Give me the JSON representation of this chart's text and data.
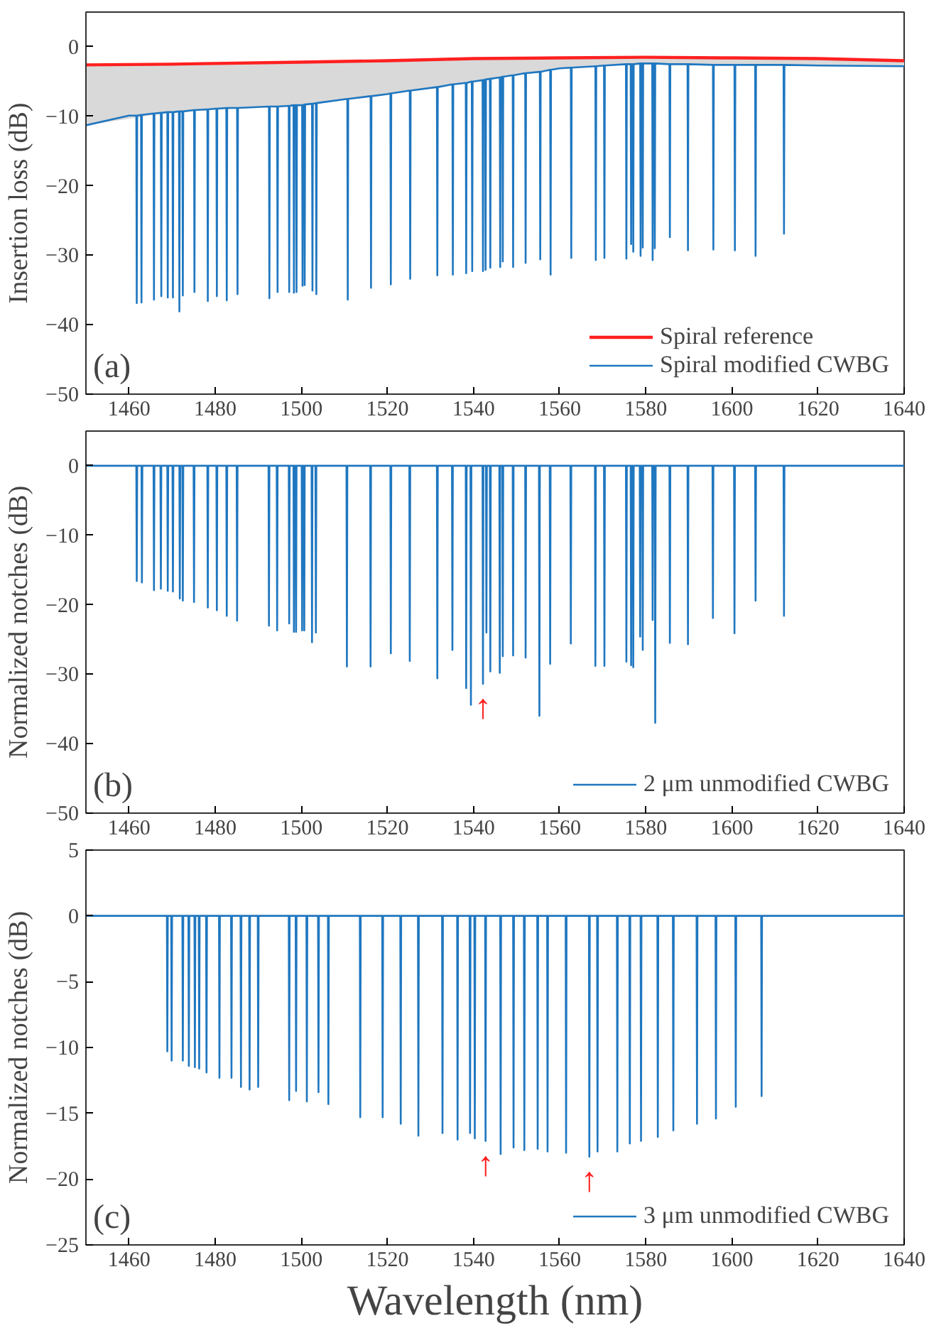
{
  "chart_data": [
    {
      "type": "line",
      "ylabel": "Insertion loss (dB)",
      "xlim": [
        1450,
        1640
      ],
      "ylim": [
        -50,
        5
      ],
      "xticks": [
        1460,
        1480,
        1500,
        1520,
        1540,
        1560,
        1580,
        1600,
        1620,
        1640
      ],
      "yticks": [
        -50,
        -40,
        -30,
        -20,
        -10,
        0
      ],
      "legend": "bottom right",
      "annotations": [
        "(a)"
      ],
      "series": [
        {
          "name": "Spiral reference",
          "color": "#ff2020",
          "x": [
            1450,
            1470,
            1500,
            1520,
            1540,
            1560,
            1580,
            1600,
            1620,
            1640
          ],
          "values": [
            -2.6,
            -2.5,
            -2.2,
            -2.0,
            -1.7,
            -1.6,
            -1.5,
            -1.6,
            -1.7,
            -2.0
          ],
          "upper": [
            -2.6,
            -2.5,
            -2.2,
            -2.0,
            -1.7,
            -1.6,
            -1.5,
            -1.6,
            -1.7,
            -2.0
          ],
          "lower": [
            -11.3,
            -9.4,
            -8.4,
            -6.8,
            -5.0,
            -3.1,
            -2.4,
            -2.6,
            -2.7,
            -2.8
          ]
        },
        {
          "name": "Spiral modified CWBG",
          "color": "#1f77c0",
          "x": [
            1450,
            1460,
            1461.7,
            1461.8,
            1461.9,
            1462.8,
            1462.9,
            1463.0,
            1465.7,
            1465.8,
            1465.9,
            1467.4,
            1467.5,
            1467.6,
            1468.9,
            1469.0,
            1469.1,
            1470.1,
            1470.2,
            1470.3,
            1471.6,
            1471.7,
            1471.8,
            1472.4,
            1472.5,
            1472.6,
            1475.1,
            1475.2,
            1475.3,
            1478.2,
            1478.3,
            1478.4,
            1480,
            1480.3,
            1480.4,
            1480.5,
            1482.6,
            1482.7,
            1482.8,
            1485.1,
            1485.2,
            1485.3,
            1492.5,
            1492.6,
            1492.7,
            1494.4,
            1494.5,
            1494.6,
            1497.1,
            1497.2,
            1497.3,
            1498.2,
            1498.3,
            1498.4,
            1498.8,
            1498.9,
            1499.0,
            1500,
            1500.2,
            1500.3,
            1500.4,
            1500.7,
            1500.8,
            1500.9,
            1502.5,
            1502.6,
            1502.7,
            1503.4,
            1503.5,
            1503.6,
            1510.7,
            1510.8,
            1510.9,
            1516.1,
            1516.2,
            1516.3,
            1520,
            1520.7,
            1520.8,
            1520.9,
            1525.2,
            1525.3,
            1525.4,
            1531.5,
            1531.6,
            1531.7,
            1535.1,
            1535.2,
            1535.3,
            1538.2,
            1538.3,
            1538.4,
            1539.6,
            1539.7,
            1539.8,
            1540,
            1542.1,
            1542.2,
            1542.3,
            1542.7,
            1542.8,
            1542.9,
            1543.8,
            1543.9,
            1544.0,
            1546.1,
            1546.2,
            1546.3,
            1546.7,
            1546.8,
            1546.9,
            1549.1,
            1549.2,
            1549.3,
            1552.0,
            1552.1,
            1552.2,
            1555.4,
            1555.5,
            1555.6,
            1557.8,
            1557.9,
            1558.0,
            1560,
            1562.6,
            1562.7,
            1562.8,
            1568.3,
            1568.4,
            1568.5,
            1570.3,
            1570.4,
            1570.5,
            1575.4,
            1575.5,
            1575.6,
            1576.5,
            1576.6,
            1576.7,
            1577.0,
            1577.1,
            1577.2,
            1578.7,
            1578.8,
            1578.9,
            1579.2,
            1579.3,
            1579.4,
            1580,
            1581.5,
            1581.6,
            1581.7,
            1582.0,
            1582.1,
            1582.2,
            1585.5,
            1585.6,
            1585.7,
            1589.7,
            1589.8,
            1589.9,
            1595.6,
            1595.7,
            1595.8,
            1600,
            1600.6,
            1600.7,
            1600.8,
            1605.4,
            1605.5,
            1605.6,
            1612.0,
            1612.1,
            1612.2,
            1620,
            1640
          ],
          "values": [
            -11.3,
            -9.9,
            -9.9,
            -36.9,
            -9.9,
            -9.8,
            -36.8,
            -9.8,
            -9.6,
            -36.4,
            -9.6,
            -9.5,
            -35.9,
            -9.5,
            -9.4,
            -36.1,
            -9.4,
            -9.4,
            -36.1,
            -9.4,
            -9.3,
            -38.1,
            -9.3,
            -9.3,
            -35.8,
            -9.3,
            -9.1,
            -35.3,
            -9.1,
            -9.0,
            -36.6,
            -9.0,
            -8.9,
            -8.9,
            -35.9,
            -8.9,
            -8.8,
            -36.5,
            -8.8,
            -8.8,
            -35.6,
            -8.8,
            -8.6,
            -36.2,
            -8.6,
            -8.6,
            -35.3,
            -8.6,
            -8.5,
            -35.3,
            -8.5,
            -8.4,
            -35.4,
            -8.4,
            -8.4,
            -35.3,
            -8.4,
            -8.4,
            -8.4,
            -34.4,
            -8.4,
            -8.3,
            -34.3,
            -8.3,
            -8.2,
            -35.1,
            -8.2,
            -8.1,
            -35.6,
            -8.1,
            -7.5,
            -36.4,
            -7.5,
            -7.1,
            -34.7,
            -7.1,
            -6.8,
            -6.7,
            -34.2,
            -6.7,
            -6.3,
            -33.4,
            -6.3,
            -5.8,
            -32.9,
            -5.8,
            -5.4,
            -32.8,
            -5.4,
            -5.2,
            -32.6,
            -5.2,
            -5.0,
            -32.3,
            -5.0,
            -5.0,
            -4.8,
            -32.3,
            -4.8,
            -4.7,
            -32.1,
            -4.7,
            -4.6,
            -31.8,
            -4.6,
            -4.4,
            -31.7,
            -4.4,
            -4.3,
            -30.9,
            -4.3,
            -4.1,
            -31.7,
            -4.1,
            -3.8,
            -31.1,
            -3.8,
            -3.6,
            -30.6,
            -3.6,
            -3.3,
            -32.8,
            -3.3,
            -3.1,
            -3.0,
            -30.4,
            -3.0,
            -2.8,
            -30.7,
            -2.8,
            -2.7,
            -30.4,
            -2.7,
            -2.5,
            -30.5,
            -2.5,
            -2.5,
            -28.4,
            -2.5,
            -2.5,
            -29.5,
            -2.5,
            -2.4,
            -30.1,
            -2.4,
            -2.4,
            -28.9,
            -2.4,
            -2.4,
            -2.4,
            -30.7,
            -2.4,
            -2.4,
            -29.0,
            -2.4,
            -2.5,
            -27.4,
            -2.5,
            -2.5,
            -29.3,
            -2.5,
            -2.6,
            -29.2,
            -2.6,
            -2.6,
            -2.6,
            -29.3,
            -2.6,
            -2.6,
            -30.1,
            -2.6,
            -2.6,
            -26.9,
            -2.6,
            -2.7,
            -2.8
          ]
        }
      ]
    },
    {
      "type": "line",
      "ylabel": "Normalized notches (dB)",
      "xlim": [
        1450,
        1640
      ],
      "ylim": [
        -50,
        5
      ],
      "xticks": [
        1460,
        1480,
        1500,
        1520,
        1540,
        1560,
        1580,
        1600,
        1620,
        1640
      ],
      "yticks": [
        -50,
        -40,
        -30,
        -20,
        -10,
        0
      ],
      "legend": "bottom right",
      "annotations": [
        "(b)",
        {
          "text": "↑",
          "x": 1542.2,
          "y": -31.4
        }
      ],
      "series": [
        {
          "name": "2 μm unmodified CWBG",
          "color": "#1f77c0",
          "x": [
            1450,
            1461.7,
            1461.8,
            1461.9,
            1462.9,
            1463.0,
            1463.1,
            1465.7,
            1465.8,
            1465.9,
            1467.3,
            1467.4,
            1467.5,
            1468.9,
            1469.0,
            1469.1,
            1470.1,
            1470.2,
            1470.3,
            1471.7,
            1471.8,
            1471.9,
            1472.4,
            1472.5,
            1472.6,
            1475.0,
            1475.1,
            1475.2,
            1478.2,
            1478.3,
            1478.4,
            1480.3,
            1480.4,
            1480.5,
            1482.6,
            1482.7,
            1482.8,
            1485.0,
            1485.1,
            1485.2,
            1492.4,
            1492.5,
            1492.6,
            1494.3,
            1494.4,
            1494.5,
            1497.1,
            1497.2,
            1497.3,
            1498.2,
            1498.3,
            1498.4,
            1498.7,
            1498.8,
            1498.9,
            1500.1,
            1500.2,
            1500.3,
            1500.6,
            1500.7,
            1500.8,
            1502.4,
            1502.5,
            1502.6,
            1503.3,
            1503.4,
            1503.5,
            1510.5,
            1510.6,
            1510.7,
            1516.0,
            1516.1,
            1516.2,
            1520.7,
            1520.8,
            1520.9,
            1525.1,
            1525.2,
            1525.3,
            1531.5,
            1531.6,
            1531.7,
            1535.0,
            1535.1,
            1535.2,
            1538.2,
            1538.3,
            1538.4,
            1539.3,
            1539.4,
            1539.5,
            1542.1,
            1542.2,
            1542.3,
            1542.9,
            1543.0,
            1543.1,
            1543.8,
            1543.9,
            1544.0,
            1546.0,
            1546.1,
            1546.2,
            1546.7,
            1546.8,
            1546.9,
            1549.1,
            1549.2,
            1549.3,
            1552.0,
            1552.1,
            1552.2,
            1555.2,
            1555.3,
            1555.4,
            1557.7,
            1557.8,
            1557.9,
            1562.5,
            1562.6,
            1562.7,
            1568.2,
            1568.3,
            1568.4,
            1570.3,
            1570.4,
            1570.5,
            1575.4,
            1575.5,
            1575.6,
            1576.5,
            1576.6,
            1576.7,
            1577.0,
            1577.1,
            1577.2,
            1578.6,
            1578.7,
            1578.8,
            1579.2,
            1579.3,
            1579.4,
            1581.5,
            1581.6,
            1581.7,
            1582.1,
            1582.2,
            1582.3,
            1585.5,
            1585.6,
            1585.7,
            1589.7,
            1589.8,
            1589.9,
            1595.5,
            1595.6,
            1595.7,
            1600.5,
            1600.6,
            1600.7,
            1605.4,
            1605.5,
            1605.6,
            1612.0,
            1612.1,
            1612.2,
            1640
          ],
          "values": [
            0,
            0,
            -16.6,
            0,
            0,
            -16.8,
            0,
            0,
            -17.9,
            0,
            0,
            -17.7,
            0,
            0,
            -18.0,
            0,
            0,
            -18.1,
            0,
            0,
            -19.1,
            0,
            0,
            -19.4,
            0,
            0,
            -19.6,
            0,
            0,
            -20.4,
            0,
            0,
            -20.8,
            0,
            0,
            -21.6,
            0,
            0,
            -22.3,
            0,
            0,
            -23.0,
            0,
            0,
            -23.7,
            0,
            0,
            -22.7,
            0,
            0,
            -23.9,
            0,
            0,
            -23.9,
            0,
            0,
            -23.7,
            0,
            0,
            -23.7,
            0,
            0,
            -25.4,
            0,
            0,
            -24.0,
            0,
            0,
            -28.9,
            0,
            0,
            -28.9,
            0,
            0,
            -27.0,
            0,
            0,
            -28.1,
            0,
            0,
            -30.6,
            0,
            0,
            -26.5,
            0,
            0,
            -32.0,
            0,
            0,
            -34.4,
            0,
            0,
            -31.4,
            0,
            0,
            -24.0,
            0,
            0,
            -29.6,
            0,
            0,
            -29.8,
            0,
            0,
            -27.4,
            0,
            0,
            -27.3,
            0,
            0,
            -27.6,
            0,
            0,
            -36.0,
            0,
            0,
            -28.5,
            0,
            0,
            -25.6,
            0,
            0,
            -28.8,
            0,
            0,
            -28.8,
            0,
            0,
            -28.2,
            0,
            0,
            -28.7,
            0,
            0,
            -29.0,
            0,
            0,
            -24.6,
            0,
            0,
            -26.5,
            0,
            0,
            -22.2,
            0,
            0,
            -37.0,
            0,
            0,
            -25.5,
            0,
            0,
            -25.7,
            0,
            0,
            -21.9,
            0,
            0,
            -24.1,
            0,
            0,
            -19.4,
            0,
            0,
            -21.6,
            0,
            0
          ]
        }
      ]
    },
    {
      "type": "line",
      "ylabel": "Normalized notches (dB)",
      "xlabel": "Wavelength (nm)",
      "xlim": [
        1450,
        1640
      ],
      "ylim": [
        -25,
        5
      ],
      "xticks": [
        1460,
        1480,
        1500,
        1520,
        1540,
        1560,
        1580,
        1600,
        1620,
        1640
      ],
      "yticks": [
        -25,
        -20,
        -15,
        -10,
        -5,
        0,
        5
      ],
      "legend": "bottom right",
      "annotations": [
        "(c)",
        {
          "text": "↑",
          "x": 1542.8,
          "y": -17.1
        },
        {
          "text": "↑",
          "x": 1566.9,
          "y": -18.3
        }
      ],
      "series": [
        {
          "name": "3 μm unmodified CWBG",
          "color": "#1f77c0",
          "x": [
            1450,
            1468.8,
            1468.9,
            1469.0,
            1469.8,
            1469.9,
            1470.0,
            1472.4,
            1472.5,
            1472.6,
            1473.8,
            1473.9,
            1474.0,
            1475.2,
            1475.3,
            1475.4,
            1476.2,
            1476.3,
            1476.4,
            1477.9,
            1478.0,
            1478.1,
            1480.9,
            1481.0,
            1481.1,
            1483.7,
            1483.8,
            1483.9,
            1485.9,
            1486.0,
            1486.1,
            1487.9,
            1488.0,
            1488.1,
            1489.9,
            1490.0,
            1490.1,
            1497.1,
            1497.2,
            1497.3,
            1498.7,
            1498.8,
            1498.9,
            1501.2,
            1501.3,
            1501.4,
            1503.9,
            1504.0,
            1504.1,
            1506.2,
            1506.3,
            1506.4,
            1513.6,
            1513.7,
            1513.8,
            1518.8,
            1518.9,
            1519.0,
            1523.0,
            1523.1,
            1523.2,
            1527.1,
            1527.2,
            1527.3,
            1532.7,
            1532.8,
            1532.9,
            1536.2,
            1536.3,
            1536.4,
            1539.1,
            1539.2,
            1539.3,
            1540.2,
            1540.3,
            1540.4,
            1542.7,
            1542.8,
            1542.9,
            1546.2,
            1546.3,
            1546.4,
            1549.2,
            1549.3,
            1549.4,
            1551.7,
            1551.8,
            1551.9,
            1554.8,
            1554.9,
            1555.0,
            1557.1,
            1557.2,
            1557.3,
            1561.4,
            1561.5,
            1561.6,
            1566.8,
            1566.9,
            1567.0,
            1568.7,
            1568.8,
            1568.9,
            1573.3,
            1573.4,
            1573.5,
            1576.2,
            1576.3,
            1576.4,
            1578.8,
            1578.9,
            1579.0,
            1582.7,
            1582.8,
            1582.9,
            1586.3,
            1586.4,
            1586.5,
            1591.8,
            1591.9,
            1592.0,
            1596.2,
            1596.3,
            1596.4,
            1600.8,
            1600.9,
            1601.0,
            1606.8,
            1606.9,
            1607.0,
            1640
          ],
          "values": [
            0,
            0,
            -10.3,
            0,
            0,
            -11.0,
            0,
            0,
            -11.0,
            0,
            0,
            -11.4,
            0,
            0,
            -11.5,
            0,
            0,
            -11.6,
            0,
            0,
            -11.9,
            0,
            0,
            -12.3,
            0,
            0,
            -12.3,
            0,
            0,
            -13.0,
            0,
            0,
            -13.2,
            0,
            0,
            -13.0,
            0,
            0,
            -14.0,
            0,
            0,
            -13.3,
            0,
            0,
            -14.1,
            0,
            0,
            -13.4,
            0,
            0,
            -14.3,
            0,
            0,
            -15.3,
            0,
            0,
            -15.3,
            0,
            0,
            -15.8,
            0,
            0,
            -16.7,
            0,
            0,
            -16.5,
            0,
            0,
            -17.0,
            0,
            0,
            -16.5,
            0,
            0,
            -16.9,
            0,
            0,
            -17.1,
            0,
            0,
            -18.1,
            0,
            0,
            -17.6,
            0,
            0,
            -17.8,
            0,
            0,
            -17.7,
            0,
            0,
            -17.9,
            0,
            0,
            -18.0,
            0,
            0,
            -18.3,
            0,
            0,
            -17.9,
            0,
            0,
            -17.9,
            0,
            0,
            -17.3,
            0,
            0,
            -17.1,
            0,
            0,
            -16.8,
            0,
            0,
            -16.3,
            0,
            0,
            -15.8,
            0,
            0,
            -15.4,
            0,
            0,
            -14.5,
            0,
            0,
            -13.7,
            0,
            0
          ]
        }
      ]
    }
  ]
}
